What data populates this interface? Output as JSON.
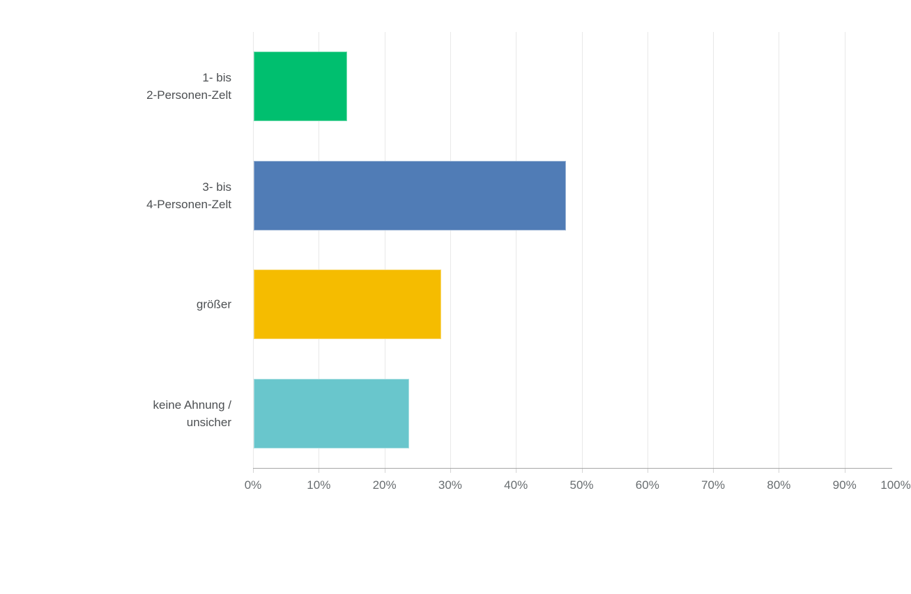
{
  "chart_data": {
    "type": "bar",
    "orientation": "horizontal",
    "title": "",
    "xlabel": "",
    "ylabel": "",
    "categories": [
      "1- bis\n2-Personen-Zelt",
      "3- bis\n4-Personen-Zelt",
      "größer",
      "keine Ahnung /\nunsicher"
    ],
    "values": [
      14.2,
      47.5,
      28.5,
      23.7
    ],
    "unit": "%",
    "bar_colors": [
      "#00bf6f",
      "#507cb6",
      "#f5bc00",
      "#69c6cc"
    ],
    "xlim": [
      0,
      100
    ],
    "x_tick_labels": [
      "0%",
      "10%",
      "20%",
      "30%",
      "40%",
      "50%",
      "60%",
      "70%",
      "80%",
      "90%",
      "100%"
    ],
    "grid": true,
    "legend": "none"
  },
  "style": {
    "background": "#ffffff",
    "grid_color": "#e8e8e8",
    "axis_line_color": "#a6a6a6",
    "tick_color": "#d4d4d4",
    "category_label_color": "#4c4f52",
    "tick_label_color": "#686d70"
  }
}
